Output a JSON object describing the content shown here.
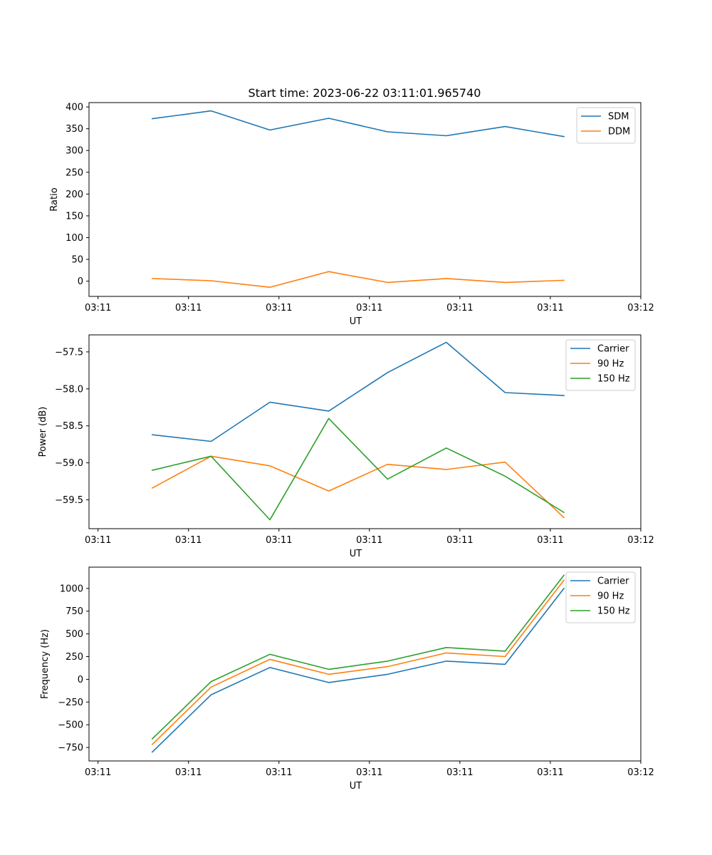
{
  "figure": {
    "title": "Start time: 2023-06-22 03:11:01.965740"
  },
  "chart_data": [
    {
      "type": "line",
      "title": "Start time: 2023-06-22 03:11:01.965740",
      "xlabel": "UT",
      "ylabel": "Ratio",
      "x_tick_labels": [
        "03:11",
        "03:11",
        "03:11",
        "03:11",
        "03:11",
        "03:11",
        "03:12"
      ],
      "x": [
        0.6,
        1.25,
        1.9,
        2.55,
        3.2,
        3.85,
        4.5,
        5.15
      ],
      "xlim": [
        -0.1,
        6.0
      ],
      "ylim": [
        -35,
        410
      ],
      "y_ticks": [
        0,
        50,
        100,
        150,
        200,
        250,
        300,
        350,
        400
      ],
      "legend_position": "upper right",
      "grid": false,
      "series": [
        {
          "name": "SDM",
          "color": "#1f77b4",
          "values": [
            373,
            391,
            347,
            374,
            343,
            334,
            355,
            332
          ]
        },
        {
          "name": "DDM",
          "color": "#ff7f0e",
          "values": [
            6,
            1,
            -14,
            22,
            -3,
            6,
            -3,
            2
          ]
        }
      ]
    },
    {
      "type": "line",
      "xlabel": "UT",
      "ylabel": "Power (dB)",
      "x_tick_labels": [
        "03:11",
        "03:11",
        "03:11",
        "03:11",
        "03:11",
        "03:11",
        "03:12"
      ],
      "x": [
        0.6,
        1.25,
        1.9,
        2.55,
        3.2,
        3.85,
        4.5,
        5.15
      ],
      "xlim": [
        -0.1,
        6.0
      ],
      "ylim": [
        -59.89,
        -57.27
      ],
      "y_ticks": [
        -59.5,
        -59.0,
        -58.5,
        -58.0,
        -57.5
      ],
      "y_tick_labels": [
        "−59.5",
        "−59.0",
        "−58.5",
        "−58.0",
        "−57.5"
      ],
      "legend_position": "upper right",
      "grid": false,
      "series": [
        {
          "name": "Carrier",
          "color": "#1f77b4",
          "values": [
            -58.62,
            -58.71,
            -58.18,
            -58.3,
            -57.78,
            -57.37,
            -58.05,
            -58.09
          ]
        },
        {
          "name": "90 Hz",
          "color": "#ff7f0e",
          "values": [
            -59.34,
            -58.91,
            -59.04,
            -59.38,
            -59.02,
            -59.09,
            -58.99,
            -59.74
          ]
        },
        {
          "name": "150 Hz",
          "color": "#2ca02c",
          "values": [
            -59.1,
            -58.91,
            -59.77,
            -58.4,
            -59.22,
            -58.8,
            -59.18,
            -59.67
          ]
        }
      ]
    },
    {
      "type": "line",
      "xlabel": "UT",
      "ylabel": "Frequency (Hz)",
      "x_tick_labels": [
        "03:11",
        "03:11",
        "03:11",
        "03:11",
        "03:11",
        "03:11",
        "03:12"
      ],
      "x": [
        0.6,
        1.25,
        1.9,
        2.55,
        3.2,
        3.85,
        4.5,
        5.15
      ],
      "xlim": [
        -0.1,
        6.0
      ],
      "ylim": [
        -898,
        1234
      ],
      "y_ticks": [
        -750,
        -500,
        -250,
        0,
        250,
        500,
        750,
        1000
      ],
      "y_tick_labels": [
        "−750",
        "−500",
        "−250",
        "0",
        "250",
        "500",
        "750",
        "1000"
      ],
      "legend_position": "upper right",
      "grid": false,
      "series": [
        {
          "name": "Carrier",
          "color": "#1f77b4",
          "values": [
            -800,
            -170,
            130,
            -35,
            55,
            200,
            165,
            1000
          ]
        },
        {
          "name": "90 Hz",
          "color": "#ff7f0e",
          "values": [
            -715,
            -85,
            220,
            55,
            140,
            290,
            250,
            1090
          ]
        },
        {
          "name": "150 Hz",
          "color": "#2ca02c",
          "values": [
            -655,
            -25,
            275,
            110,
            200,
            350,
            310,
            1145
          ]
        }
      ]
    }
  ]
}
